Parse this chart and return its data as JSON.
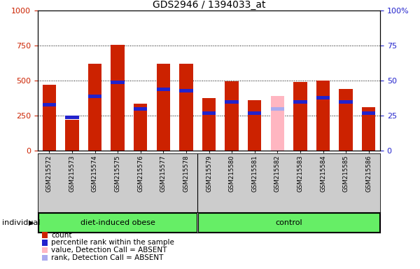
{
  "title": "GDS2946 / 1394033_at",
  "samples": [
    "GSM215572",
    "GSM215573",
    "GSM215574",
    "GSM215575",
    "GSM215576",
    "GSM215577",
    "GSM215578",
    "GSM215579",
    "GSM215580",
    "GSM215581",
    "GSM215582",
    "GSM215583",
    "GSM215584",
    "GSM215585",
    "GSM215586"
  ],
  "count_values": [
    470,
    220,
    620,
    755,
    335,
    620,
    620,
    375,
    495,
    360,
    0,
    490,
    500,
    440,
    310
  ],
  "rank_values": [
    33,
    24,
    39,
    49,
    30,
    44,
    43,
    27,
    35,
    27,
    0,
    35,
    38,
    35,
    27
  ],
  "absent_count": [
    0,
    0,
    0,
    0,
    0,
    0,
    0,
    0,
    0,
    0,
    390,
    0,
    0,
    0,
    0
  ],
  "absent_rank": [
    0,
    0,
    0,
    0,
    0,
    0,
    0,
    0,
    0,
    0,
    30,
    0,
    0,
    0,
    0
  ],
  "left_ylim": [
    0,
    1000
  ],
  "right_ylim": [
    0,
    100
  ],
  "yticks_left": [
    0,
    250,
    500,
    750,
    1000
  ],
  "yticks_right": [
    0,
    25,
    50,
    75,
    100
  ],
  "bar_color_red": "#CC2200",
  "bar_color_blue": "#2222CC",
  "bar_color_pink": "#FFB6C1",
  "bar_color_lightblue": "#AAAAEE",
  "group_green": "#66EE66",
  "bg_gray": "#CCCCCC",
  "plot_bg": "#FFFFFF",
  "obese_label": "diet-induced obese",
  "control_label": "control",
  "individual_label": "individual",
  "title_fontsize": 10,
  "legend_items": [
    "count",
    "percentile rank within the sample",
    "value, Detection Call = ABSENT",
    "rank, Detection Call = ABSENT"
  ]
}
